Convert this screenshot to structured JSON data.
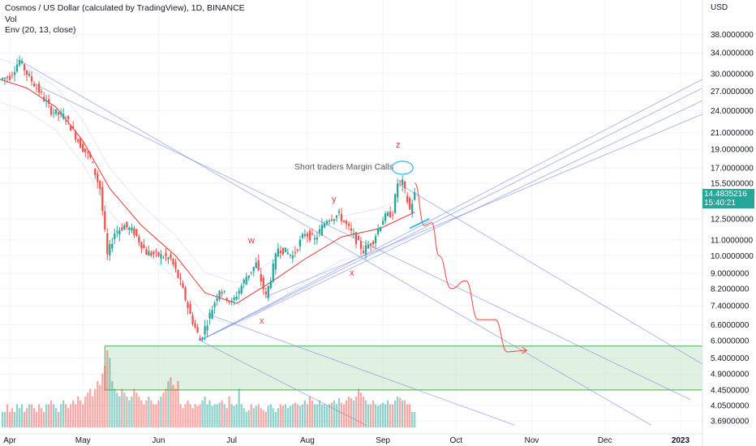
{
  "header": {
    "title": "Cosmos / US Dollar (calculated by TradingView), 1D, BINANCE",
    "indicator_vol": "Vol",
    "indicator_env": "Env (20, 13, close)"
  },
  "axis": {
    "currency": "USD",
    "price_ticks": [
      "38.0000000",
      "34.0000000",
      "30.0000000",
      "27.0000000",
      "24.0000000",
      "21.0000000",
      "19.0000000",
      "17.0000000",
      "15.5000000",
      "12.5000000",
      "11.0000000",
      "10.0000000",
      "9.0000000",
      "8.2000000",
      "7.4000000",
      "6.6000000",
      "6.0000000",
      "5.4000000",
      "4.9000000",
      "4.4500000",
      "4.0500000",
      "3.6900000"
    ],
    "time_labels": [
      "Apr",
      "May",
      "Jun",
      "Jul",
      "Aug",
      "Sep",
      "Oct",
      "Nov",
      "Dec",
      "2023"
    ]
  },
  "last_price": {
    "value": "14.4835216",
    "countdown": "15:40:21",
    "color": "#26a69a"
  },
  "annotations": {
    "margin_calls": "Short traders Margin Calls",
    "w": "w",
    "x1": "x",
    "y": "y",
    "x2": "x",
    "z": "z"
  },
  "colors": {
    "up": "#26a69a",
    "down": "#ef5350",
    "envelope": "#e53935",
    "projection": "#ef5350",
    "channel": "#7b8fe0",
    "zone_fill": "#c8e6c9",
    "zone_stroke": "#4caf50",
    "wave_label": "#e53935",
    "annotation_circle": "#29b6f6"
  },
  "chart_data": {
    "type": "candlestick",
    "price_scale": "log",
    "y_range": [
      3.5,
      42
    ],
    "x_range": [
      "2022-03-28",
      "2023-01-10"
    ],
    "demand_zone": {
      "from": "2022-05-10",
      "to": "2023-01-10",
      "low": 4.45,
      "high": 5.8
    },
    "close_path": [
      [
        "2022-03-28",
        29.0
      ],
      [
        "2022-04-01",
        29.5
      ],
      [
        "2022-04-05",
        32.5
      ],
      [
        "2022-04-08",
        30.0
      ],
      [
        "2022-04-13",
        27.0
      ],
      [
        "2022-04-18",
        24.0
      ],
      [
        "2022-04-24",
        23.0
      ],
      [
        "2022-04-30",
        19.5
      ],
      [
        "2022-05-04",
        18.0
      ],
      [
        "2022-05-08",
        15.0
      ],
      [
        "2022-05-11",
        10.0
      ],
      [
        "2022-05-14",
        11.5
      ],
      [
        "2022-05-18",
        12.0
      ],
      [
        "2022-05-22",
        11.5
      ],
      [
        "2022-05-27",
        10.2
      ],
      [
        "2022-06-02",
        10.0
      ],
      [
        "2022-06-06",
        9.8
      ],
      [
        "2022-06-10",
        8.5
      ],
      [
        "2022-06-14",
        7.0
      ],
      [
        "2022-06-18",
        6.0
      ],
      [
        "2022-06-22",
        7.0
      ],
      [
        "2022-06-26",
        8.2
      ],
      [
        "2022-07-01",
        7.5
      ],
      [
        "2022-07-07",
        8.8
      ],
      [
        "2022-07-11",
        9.5
      ],
      [
        "2022-07-15",
        7.8
      ],
      [
        "2022-07-20",
        10.5
      ],
      [
        "2022-07-26",
        10.0
      ],
      [
        "2022-07-31",
        11.5
      ],
      [
        "2022-08-04",
        11.0
      ],
      [
        "2022-08-09",
        12.5
      ],
      [
        "2022-08-14",
        12.8
      ],
      [
        "2022-08-19",
        11.5
      ],
      [
        "2022-08-24",
        10.3
      ],
      [
        "2022-08-28",
        11.0
      ],
      [
        "2022-09-01",
        12.5
      ],
      [
        "2022-09-05",
        13.0
      ],
      [
        "2022-09-07",
        15.5
      ],
      [
        "2022-09-09",
        15.5
      ],
      [
        "2022-09-12",
        13.2
      ],
      [
        "2022-09-14",
        14.48
      ]
    ],
    "envelope_basis": [
      [
        "2022-03-28",
        29.0
      ],
      [
        "2022-04-08",
        27.5
      ],
      [
        "2022-04-20",
        24.5
      ],
      [
        "2022-05-01",
        20.0
      ],
      [
        "2022-05-12",
        15.0
      ],
      [
        "2022-05-25",
        12.0
      ],
      [
        "2022-06-08",
        10.0
      ],
      [
        "2022-06-20",
        8.0
      ],
      [
        "2022-07-03",
        7.5
      ],
      [
        "2022-07-18",
        8.6
      ],
      [
        "2022-07-31",
        9.8
      ],
      [
        "2022-08-15",
        11.2
      ],
      [
        "2022-08-31",
        11.8
      ],
      [
        "2022-09-14",
        13.0
      ]
    ],
    "projection_path": [
      [
        "2022-09-14",
        15.5
      ],
      [
        "2022-09-18",
        12.0
      ],
      [
        "2022-09-21",
        12.2
      ],
      [
        "2022-09-24",
        10.0
      ],
      [
        "2022-09-29",
        8.2
      ],
      [
        "2022-10-05",
        8.6
      ],
      [
        "2022-10-10",
        6.8
      ],
      [
        "2022-10-17",
        6.8
      ],
      [
        "2022-10-22",
        5.6
      ],
      [
        "2022-10-30",
        5.65
      ]
    ],
    "volume_relative": [
      0.2,
      0.2,
      0.3,
      0.2,
      0.25,
      0.2,
      0.3,
      0.25,
      0.3,
      0.2,
      0.25,
      0.3,
      0.3,
      0.25,
      0.2,
      0.3,
      0.25,
      0.2,
      0.3,
      0.3,
      0.35,
      0.3,
      0.25,
      0.2,
      0.3,
      0.35,
      0.3,
      0.25,
      0.3,
      0.35,
      0.3,
      0.4,
      0.35,
      0.3,
      0.4,
      0.45,
      0.5,
      0.4,
      0.5,
      0.6,
      0.55,
      0.7,
      0.8,
      1.0,
      0.9,
      0.6,
      0.5,
      0.45,
      0.4,
      0.5,
      0.45,
      0.4,
      0.35,
      0.4,
      0.5,
      0.45,
      0.4,
      0.35,
      0.3,
      0.35,
      0.4,
      0.35,
      0.3,
      0.3,
      0.35,
      0.4,
      0.45,
      0.5,
      0.6,
      0.65,
      0.55,
      0.5,
      0.6,
      0.3,
      0.25,
      0.3,
      0.35,
      0.3,
      0.25,
      0.3,
      0.28,
      0.3,
      0.35,
      0.4,
      0.3,
      0.35,
      0.28,
      0.3,
      0.3,
      0.32,
      0.35,
      0.3,
      0.25,
      0.4,
      0.3,
      0.28,
      0.3,
      0.5,
      0.3,
      0.25,
      0.2,
      0.22,
      0.3,
      0.25,
      0.28,
      0.3,
      0.25,
      0.22,
      0.2,
      0.28,
      0.3,
      0.25,
      0.2,
      0.25,
      0.3,
      0.28,
      0.3,
      0.25,
      0.28,
      0.3,
      0.32,
      0.3,
      0.28,
      0.3,
      0.35,
      0.3,
      0.4,
      0.35,
      0.3,
      0.3,
      0.35,
      0.3,
      0.3,
      0.28,
      0.3,
      0.32,
      0.35,
      0.3,
      0.38,
      0.32,
      0.3,
      0.35,
      0.4,
      0.38,
      0.35,
      0.4,
      0.5,
      0.45,
      0.4,
      0.35,
      0.3,
      0.3,
      0.35,
      0.3,
      0.28,
      0.3,
      0.32,
      0.3,
      0.35,
      0.3,
      0.3,
      0.35,
      0.4,
      0.38,
      0.35,
      0.35,
      0.3,
      0.3
    ]
  }
}
